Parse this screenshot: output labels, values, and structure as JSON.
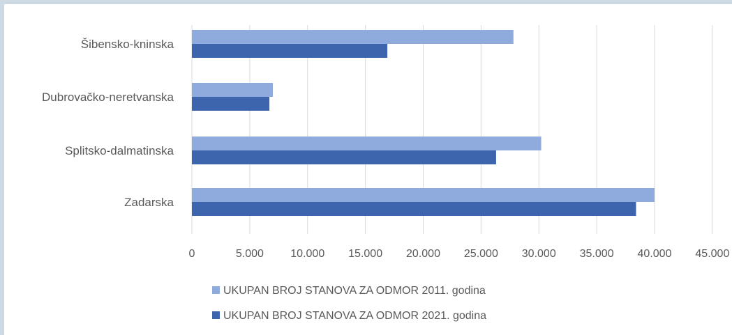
{
  "chart_data": {
    "type": "bar",
    "orientation": "horizontal",
    "categories": [
      "Šibensko-kninska",
      "Dubrovačko-neretvanska",
      "Splitsko-dalmatinska",
      "Zadarska"
    ],
    "series": [
      {
        "name": "UKUPAN BROJ STANOVA ZA ODMOR 2011. godina",
        "color": "#8faadc",
        "values": [
          27800,
          7000,
          30200,
          40000
        ]
      },
      {
        "name": "UKUPAN BROJ STANOVA ZA ODMOR 2021. godina",
        "color": "#3c65ae",
        "values": [
          16900,
          6700,
          26300,
          38400
        ]
      }
    ],
    "xlim": [
      0,
      45000
    ],
    "x_ticks": [
      0,
      5000,
      10000,
      15000,
      20000,
      25000,
      30000,
      35000,
      40000,
      45000
    ],
    "x_tick_labels": [
      "0",
      "5.000",
      "10.000",
      "15.000",
      "20.000",
      "25.000",
      "30.000",
      "35.000",
      "40.000",
      "45.000"
    ],
    "grid": true,
    "legend_position": "bottom"
  }
}
